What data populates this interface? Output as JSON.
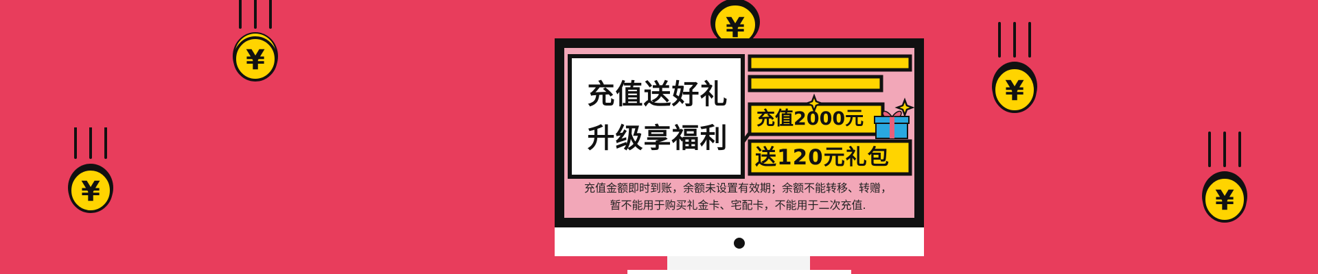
{
  "banner": {
    "headline_line1": "充值送好礼",
    "headline_line2": "升级享福利",
    "tag_amount": "充值2000元",
    "tag_gift": "送120元礼包",
    "notice_line1": "充值金额即时到账，余额未设置有效期；余额不能转移、转赠，",
    "notice_line2": "暂不能用于购买礼金卡、宅配卡，不能用于二次充值."
  },
  "coin_symbol": "¥",
  "icons": {
    "coin": "yuan-coin-icon",
    "gift": "gift-box-icon",
    "sparkle": "sparkle-icon"
  },
  "colors": {
    "background": "#E83D5C",
    "screen": "#F2A7B8",
    "accent_yellow": "#FFD400",
    "frame": "#111111",
    "gift_blue": "#29A8E0",
    "gift_ribbon": "#E8607A"
  }
}
